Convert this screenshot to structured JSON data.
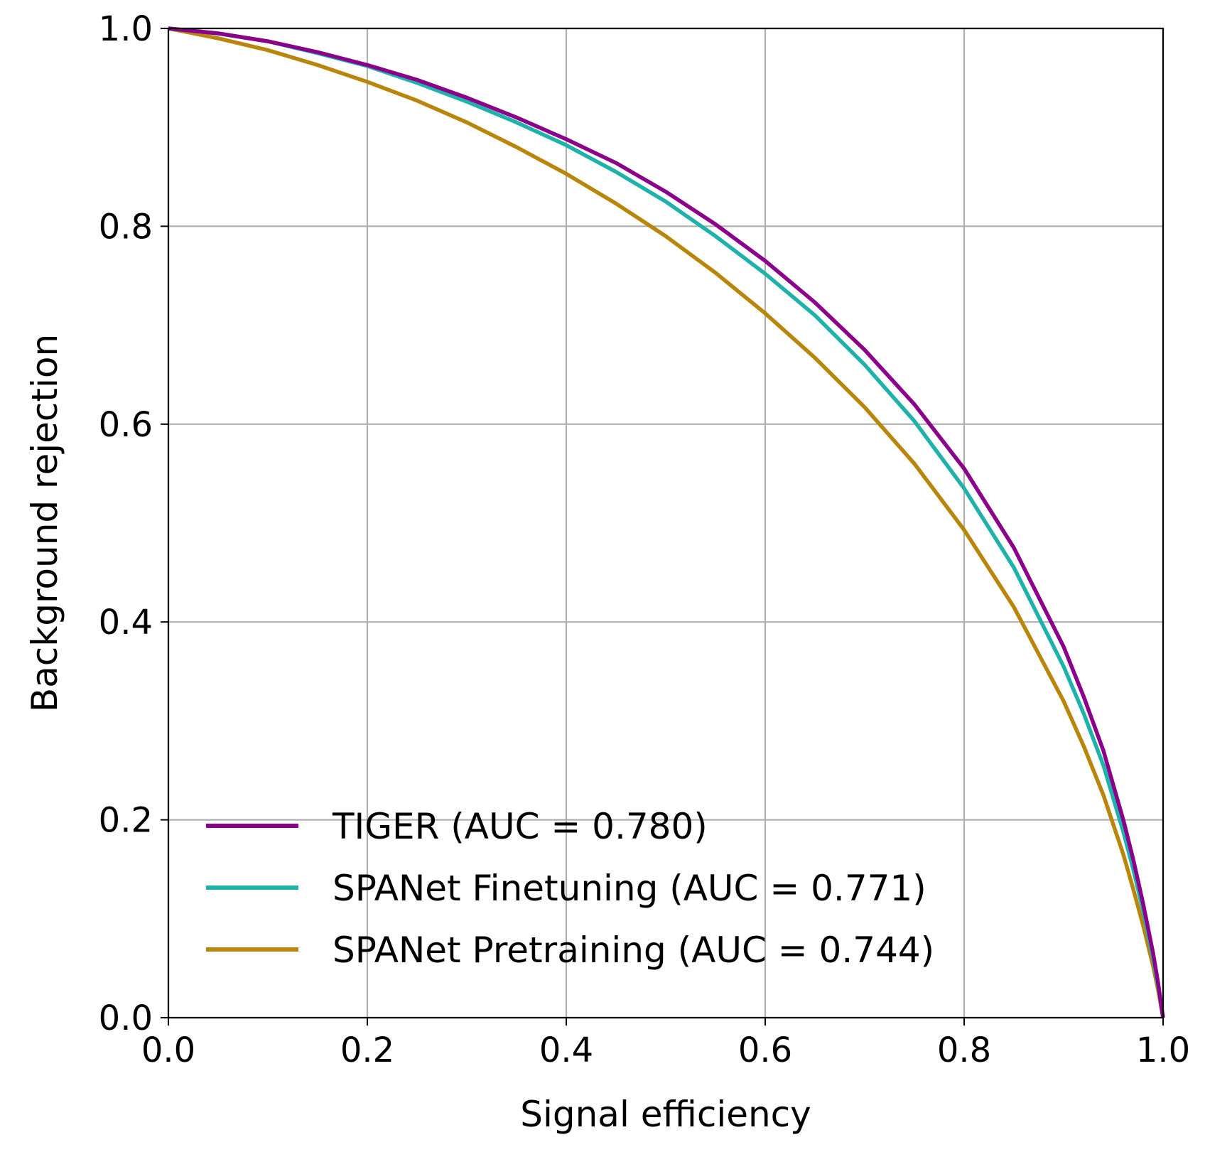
{
  "chart_data": {
    "type": "line",
    "title": "",
    "xlabel": "Signal efficiency",
    "ylabel": "Background rejection",
    "xlim": [
      0.0,
      1.0
    ],
    "ylim": [
      0.0,
      1.0
    ],
    "xticks": [
      0.0,
      0.2,
      0.4,
      0.6,
      0.8,
      1.0
    ],
    "yticks": [
      0.0,
      0.2,
      0.4,
      0.6,
      0.8,
      1.0
    ],
    "xtick_labels": [
      "0.0",
      "0.2",
      "0.4",
      "0.6",
      "0.8",
      "1.0"
    ],
    "ytick_labels": [
      "0.0",
      "0.2",
      "0.4",
      "0.6",
      "0.8",
      "1.0"
    ],
    "grid": true,
    "legend_position": "lower-left",
    "series": [
      {
        "name": "TIGER (AUC = 0.780)",
        "color": "#8b008b",
        "x": [
          0.0,
          0.05,
          0.1,
          0.15,
          0.2,
          0.25,
          0.3,
          0.35,
          0.4,
          0.45,
          0.5,
          0.55,
          0.6,
          0.65,
          0.7,
          0.75,
          0.8,
          0.85,
          0.9,
          0.92,
          0.94,
          0.96,
          0.97,
          0.98,
          0.99,
          0.995,
          1.0
        ],
        "y": [
          1.0,
          0.995,
          0.987,
          0.976,
          0.963,
          0.948,
          0.93,
          0.91,
          0.888,
          0.864,
          0.835,
          0.802,
          0.765,
          0.723,
          0.675,
          0.62,
          0.555,
          0.475,
          0.375,
          0.325,
          0.27,
          0.2,
          0.16,
          0.115,
          0.065,
          0.035,
          0.0
        ]
      },
      {
        "name": "SPANet Finetuning (AUC = 0.771)",
        "color": "#20b2aa",
        "x": [
          0.0,
          0.05,
          0.1,
          0.15,
          0.2,
          0.25,
          0.3,
          0.35,
          0.4,
          0.45,
          0.5,
          0.55,
          0.6,
          0.65,
          0.7,
          0.75,
          0.8,
          0.85,
          0.9,
          0.92,
          0.94,
          0.96,
          0.97,
          0.98,
          0.99,
          0.995,
          1.0
        ],
        "y": [
          1.0,
          0.995,
          0.987,
          0.975,
          0.962,
          0.945,
          0.926,
          0.905,
          0.882,
          0.855,
          0.825,
          0.79,
          0.752,
          0.71,
          0.66,
          0.603,
          0.535,
          0.455,
          0.355,
          0.308,
          0.255,
          0.188,
          0.15,
          0.108,
          0.06,
          0.032,
          0.0
        ]
      },
      {
        "name": "SPANet Pretraining (AUC = 0.744)",
        "color": "#b8860b",
        "x": [
          0.0,
          0.05,
          0.1,
          0.15,
          0.2,
          0.25,
          0.3,
          0.35,
          0.4,
          0.45,
          0.5,
          0.55,
          0.6,
          0.65,
          0.7,
          0.75,
          0.8,
          0.85,
          0.9,
          0.92,
          0.94,
          0.96,
          0.97,
          0.98,
          0.99,
          0.995,
          1.0
        ],
        "y": [
          1.0,
          0.99,
          0.978,
          0.963,
          0.946,
          0.927,
          0.905,
          0.88,
          0.853,
          0.823,
          0.79,
          0.753,
          0.712,
          0.667,
          0.617,
          0.56,
          0.493,
          0.415,
          0.32,
          0.275,
          0.225,
          0.165,
          0.13,
          0.093,
          0.052,
          0.028,
          0.0
        ]
      }
    ]
  }
}
